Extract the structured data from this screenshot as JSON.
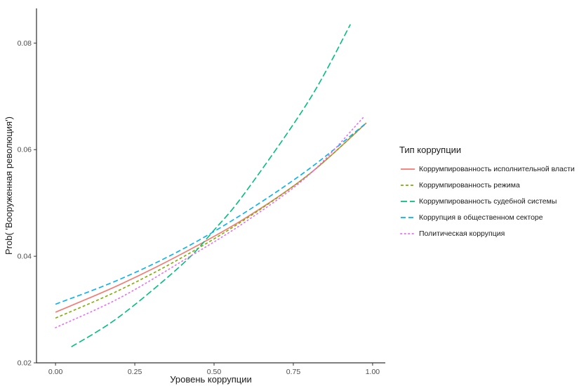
{
  "chart_data": {
    "type": "line",
    "xlabel": "Уровень коррупции",
    "ylabel": "Prob( 'Вооруженная революция')",
    "xlim": [
      -0.06,
      1.04
    ],
    "ylim": [
      0.02,
      0.0865
    ],
    "x_ticks": [
      "0.00",
      "0.25",
      "0.50",
      "0.75",
      "1.00"
    ],
    "x_tick_values": [
      0,
      0.25,
      0.5,
      0.75,
      1.0
    ],
    "y_ticks": [
      "0.02",
      "0.04",
      "0.06",
      "0.08"
    ],
    "y_tick_values": [
      0.02,
      0.04,
      0.06,
      0.08
    ],
    "grid": false,
    "legend_position": "right",
    "legend_title": "Тип коррупции",
    "series": [
      {
        "name": "Коррумпированность исполнительной власти",
        "color": "#F8766D",
        "dash": "solid",
        "x": [
          0.0,
          0.2,
          0.4,
          0.6,
          0.8,
          0.98
        ],
        "y": [
          0.0295,
          0.0346,
          0.0405,
          0.0472,
          0.0554,
          0.065
        ]
      },
      {
        "name": "Коррумпированность режима",
        "color": "#7CAE00",
        "dash": "dotted-dash",
        "x": [
          0.0,
          0.2,
          0.4,
          0.6,
          0.8,
          0.98
        ],
        "y": [
          0.0284,
          0.0336,
          0.0398,
          0.047,
          0.0554,
          0.065
        ]
      },
      {
        "name": "Коррумпированность судебной системы",
        "color": "#00BF7D",
        "dash": "long-dash",
        "x": [
          0.05,
          0.2,
          0.4,
          0.5,
          0.6,
          0.8,
          0.93
        ],
        "y": [
          0.023,
          0.0286,
          0.0385,
          0.0449,
          0.0521,
          0.0693,
          0.0835
        ]
      },
      {
        "name": "Коррупция в общественном секторе",
        "color": "#00B0F6",
        "dash": "dash",
        "x": [
          0.0,
          0.2,
          0.4,
          0.6,
          0.8,
          0.98
        ],
        "y": [
          0.031,
          0.0356,
          0.0413,
          0.0483,
          0.0564,
          0.065
        ]
      },
      {
        "name": "Политическая коррупция",
        "color": "#E76BF3",
        "dash": "dotted",
        "x": [
          0.0,
          0.2,
          0.4,
          0.6,
          0.8,
          0.97
        ],
        "y": [
          0.0266,
          0.0321,
          0.0391,
          0.0465,
          0.0553,
          0.066
        ]
      }
    ]
  }
}
